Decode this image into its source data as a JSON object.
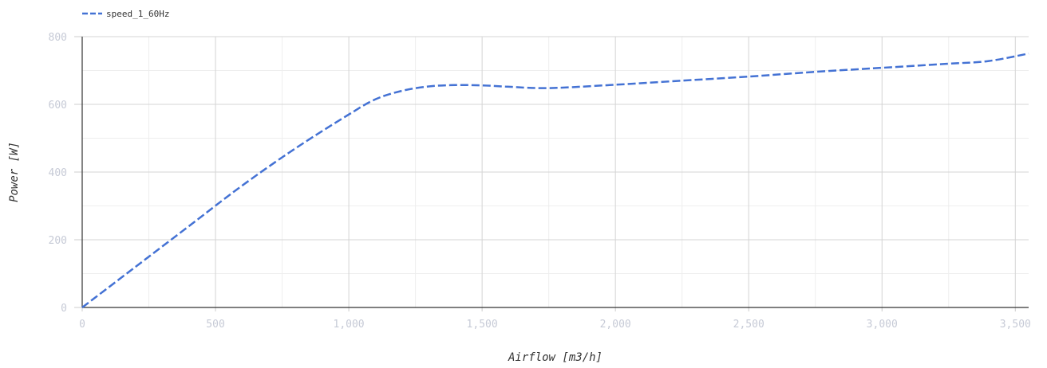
{
  "chart_data": {
    "type": "line",
    "title": "",
    "xlabel": "Airflow [m3/h]",
    "ylabel": "Power [W]",
    "xlim": [
      0,
      3550
    ],
    "ylim": [
      0,
      800
    ],
    "x_ticks": [
      0,
      500,
      1000,
      1500,
      2000,
      2500,
      3000,
      3500
    ],
    "x_tick_labels": [
      "0",
      "500",
      "1,000",
      "1,500",
      "2,000",
      "2,500",
      "3,000",
      "3,500"
    ],
    "y_ticks": [
      0,
      200,
      400,
      600,
      800
    ],
    "y_tick_labels": [
      "0",
      "200",
      "400",
      "600",
      "800"
    ],
    "grid": true,
    "legend_position": "top-left",
    "series": [
      {
        "name": "speed_1_60Hz",
        "color": "#4472d4",
        "line_style": "dashed",
        "x": [
          0,
          200,
          400,
          600,
          800,
          1000,
          1100,
          1200,
          1300,
          1400,
          1500,
          1600,
          1750,
          2000,
          2250,
          2500,
          2750,
          3000,
          3250,
          3400,
          3550
        ],
        "y": [
          0,
          120,
          240,
          360,
          470,
          570,
          615,
          640,
          653,
          657,
          656,
          652,
          648,
          658,
          670,
          682,
          696,
          708,
          720,
          728,
          750
        ]
      }
    ]
  }
}
